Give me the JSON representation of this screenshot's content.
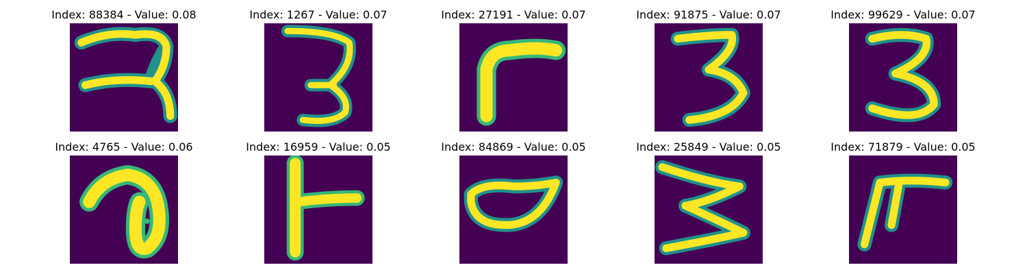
{
  "colors": {
    "background": "#440154",
    "stroke_core": "#fde725",
    "stroke_edge": "#35b779",
    "stroke_mid": "#21918c"
  },
  "panels": [
    {
      "title": "Index: 88384 - Value: 0.08"
    },
    {
      "title": "Index: 1267 - Value: 0.07"
    },
    {
      "title": "Index: 27191 - Value: 0.07"
    },
    {
      "title": "Index: 91875 - Value: 0.07"
    },
    {
      "title": "Index: 99629 - Value: 0.07"
    },
    {
      "title": "Index: 4765 - Value: 0.06"
    },
    {
      "title": "Index: 16959 - Value: 0.05"
    },
    {
      "title": "Index: 84869 - Value: 0.05"
    },
    {
      "title": "Index: 25849 - Value: 0.05"
    },
    {
      "title": "Index: 71879 - Value: 0.05"
    }
  ]
}
